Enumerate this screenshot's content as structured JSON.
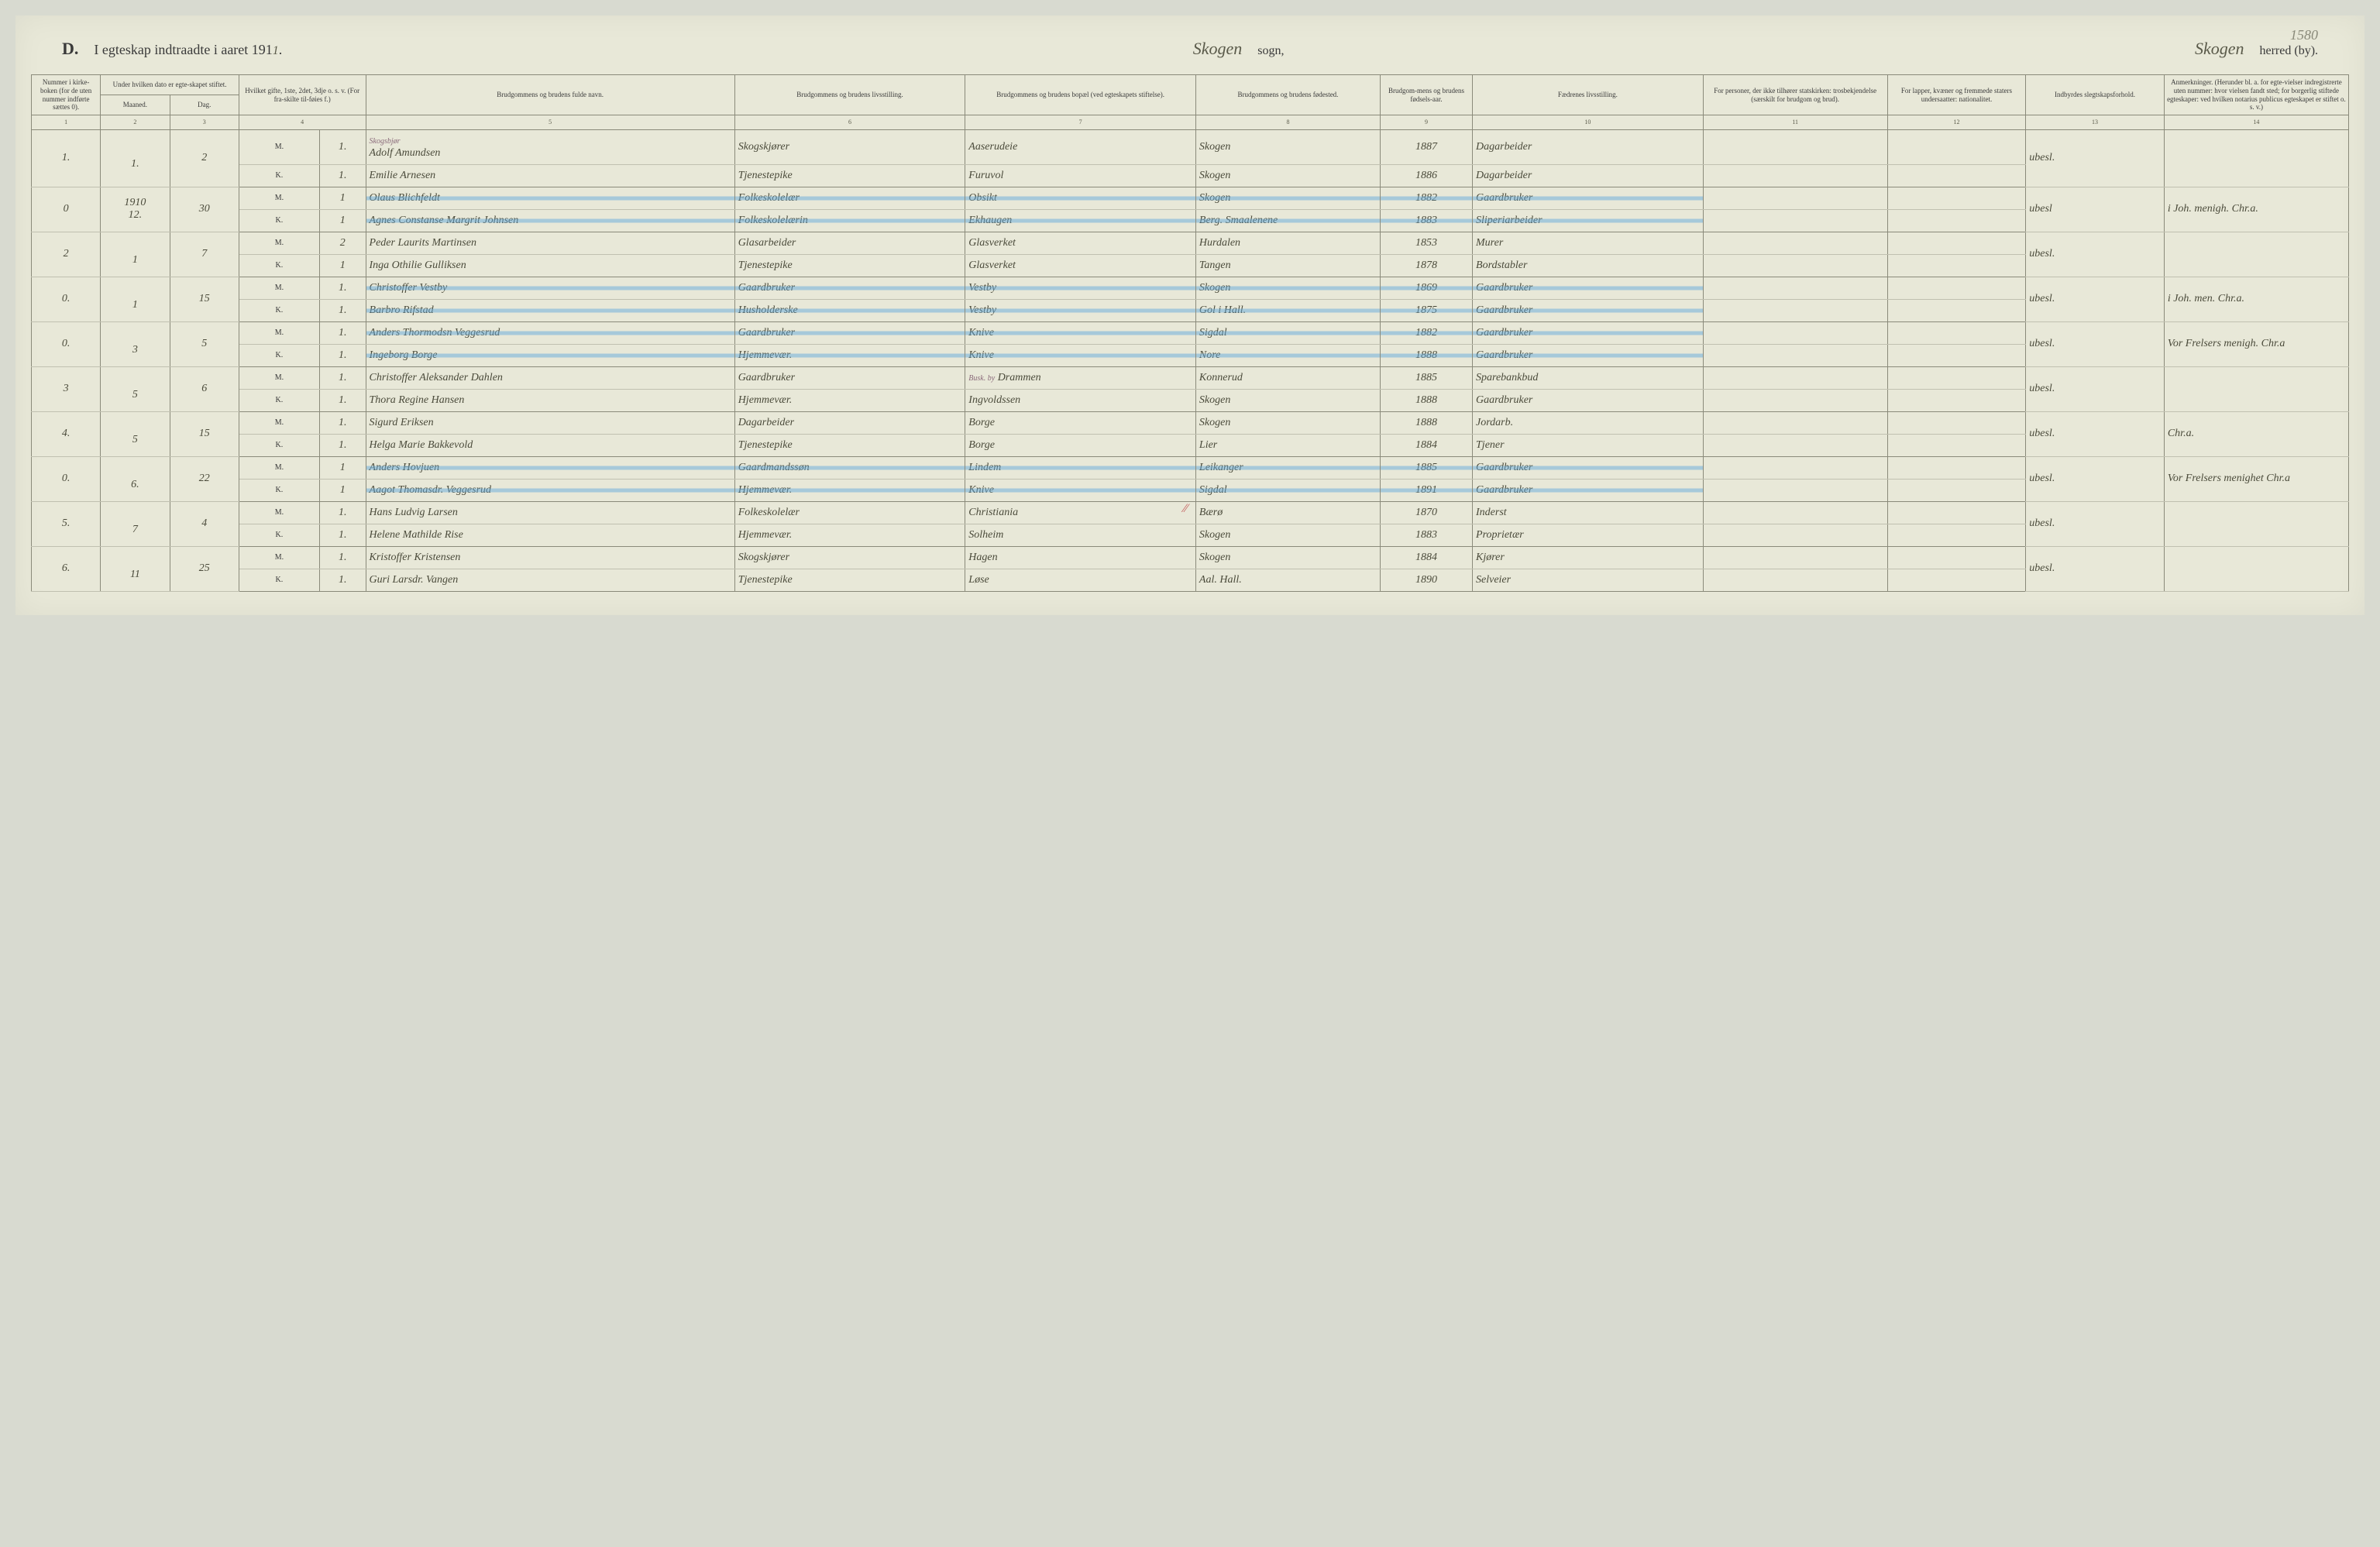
{
  "page_number": "1580",
  "header": {
    "letter": "D.",
    "title_prefix": "I egteskap indtraadte i aaret 191",
    "year_suffix": "1",
    "sogn_name": "Skogen",
    "sogn_label": "sogn,",
    "herred_name": "Skogen",
    "herred_label": "herred (by)."
  },
  "columns": {
    "c1": "Nummer i kirke-boken (for de uten nummer indførte sættes 0).",
    "c2a": "Under hvilken dato er egte-skapet stiftet.",
    "c2_maaned": "Maaned.",
    "c2_dag": "Dag.",
    "c3": "Hvilket gifte, 1ste, 2det, 3dje o. s. v. (For fra-skilte til-føies f.)",
    "c4": "Brudgommens og brudens fulde navn.",
    "c5": "Brudgommens og brudens livsstilling.",
    "c6": "Brudgommens og brudens bopæl (ved egteskapets stiftelse).",
    "c7": "Brudgommens og brudens fødested.",
    "c8": "Brudgom-mens og brudens fødsels-aar.",
    "c9": "Fædrenes livsstilling.",
    "c10": "For personer, der ikke tilhører statskirken: trosbekjendelse (særskilt for brudgom og brud).",
    "c11": "For lapper, kvæner og fremmede staters undersaatter: nationalitet.",
    "c12": "Indbyrdes slegtskapsforhold.",
    "c13": "Anmerkninger. (Herunder bl. a. for egte-vielser indregistrerte uten nummer: hvor vielsen fandt sted; for borgerlig stiftede egteskaper: ved hvilken notarius publicus egteskapet er stiftet o. s. v.)"
  },
  "col_numbers": [
    "1",
    "2",
    "3",
    "4",
    "5",
    "6",
    "7",
    "8",
    "9",
    "10",
    "11",
    "12",
    "13",
    "14"
  ],
  "mk": {
    "M": "M.",
    "K": "K."
  },
  "small_note": "Skogsbjør",
  "busk_note": "Busk. by",
  "rows": [
    {
      "num": "1.",
      "mn": "1.",
      "dag": "2",
      "blue": false,
      "m": {
        "g": "1.",
        "name": "Adolf Amundsen",
        "liv": "Skogskjører",
        "bopal": "Aaserudeie",
        "fod": "Skogen",
        "aar": "1887",
        "fadre": "Dagarbeider"
      },
      "k": {
        "g": "1.",
        "name": "Emilie Arnesen",
        "liv": "Tjenestepike",
        "bopal": "Furuvol",
        "fod": "Skogen",
        "aar": "1886",
        "fadre": "Dagarbeider"
      },
      "c12": "ubesl.",
      "c13": ""
    },
    {
      "num": "0",
      "mn_pre": "1910",
      "mn": "12.",
      "dag": "30",
      "blue": true,
      "m": {
        "g": "1",
        "name": "Olaus Blichfeldt",
        "liv": "Folkeskolelær",
        "bopal": "Obsikt",
        "fod": "Skogen",
        "aar": "1882",
        "fadre": "Gaardbruker"
      },
      "k": {
        "g": "1",
        "name": "Agnes Constanse Margrit Johnsen",
        "liv": "Folkeskolelærin",
        "bopal": "Ekhaugen",
        "fod": "Berg. Smaalenene",
        "aar": "1883",
        "fadre": "Sliperiarbeider"
      },
      "c12": "ubesl",
      "c13": "i Joh. menigh. Chr.a."
    },
    {
      "num": "2",
      "mn": "1",
      "dag": "7",
      "blue": false,
      "m": {
        "g": "2",
        "name": "Peder Laurits Martinsen",
        "liv": "Glasarbeider",
        "bopal": "Glasverket",
        "fod": "Hurdalen",
        "aar": "1853",
        "fadre": "Murer"
      },
      "k": {
        "g": "1",
        "name": "Inga Othilie Gulliksen",
        "liv": "Tjenestepike",
        "bopal": "Glasverket",
        "fod": "Tangen",
        "aar": "1878",
        "fadre": "Bordstabler"
      },
      "c12": "ubesl.",
      "c13": ""
    },
    {
      "num": "0.",
      "mn": "1",
      "dag": "15",
      "blue": true,
      "m": {
        "g": "1.",
        "name": "Christoffer Vestby",
        "liv": "Gaardbruker",
        "bopal": "Vestby",
        "fod": "Skogen",
        "aar": "1869",
        "fadre": "Gaardbruker"
      },
      "k": {
        "g": "1.",
        "name": "Barbro Rifstad",
        "liv": "Husholderske",
        "bopal": "Vestby",
        "fod": "Gol i Hall.",
        "aar": "1875",
        "fadre": "Gaardbruker"
      },
      "c12": "ubesl.",
      "c13": "i Joh. men. Chr.a."
    },
    {
      "num": "0.",
      "mn": "3",
      "dag": "5",
      "blue": true,
      "m": {
        "g": "1.",
        "name": "Anders Thormodsn Veggesrud",
        "liv": "Gaardbruker",
        "bopal": "Knive",
        "fod": "Sigdal",
        "aar": "1882",
        "fadre": "Gaardbruker"
      },
      "k": {
        "g": "1.",
        "name": "Ingeborg Borge",
        "liv": "Hjemmevær.",
        "bopal": "Knive",
        "fod": "Nore",
        "aar": "1888",
        "fadre": "Gaardbruker"
      },
      "c12": "ubesl.",
      "c13": "Vor Frelsers menigh. Chr.a"
    },
    {
      "num": "3",
      "mn": "5",
      "dag": "6",
      "blue": false,
      "m": {
        "g": "1.",
        "name": "Christoffer Aleksander Dahlen",
        "liv": "Gaardbruker",
        "bopal": "Drammen",
        "fod": "Konnerud",
        "aar": "1885",
        "fadre": "Sparebankbud"
      },
      "k": {
        "g": "1.",
        "name": "Thora Regine Hansen",
        "liv": "Hjemmevær.",
        "bopal": "Ingvoldssen",
        "fod": "Skogen",
        "aar": "1888",
        "fadre": "Gaardbruker"
      },
      "c12": "ubesl.",
      "c13": "",
      "busk": true
    },
    {
      "num": "4.",
      "mn": "5",
      "dag": "15",
      "blue": false,
      "m": {
        "g": "1.",
        "name": "Sigurd Eriksen",
        "liv": "Dagarbeider",
        "bopal": "Borge",
        "fod": "Skogen",
        "aar": "1888",
        "fadre": "Jordarb."
      },
      "k": {
        "g": "1.",
        "name": "Helga Marie Bakkevold",
        "liv": "Tjenestepike",
        "bopal": "Borge",
        "fod": "Lier",
        "aar": "1884",
        "fadre": "Tjener"
      },
      "c12": "ubesl.",
      "c13": "Chr.a."
    },
    {
      "num": "0.",
      "mn": "6.",
      "dag": "22",
      "blue": true,
      "m": {
        "g": "1",
        "name": "Anders Hovjuen",
        "liv": "Gaardmandssøn",
        "bopal": "Lindem",
        "fod": "Leikanger",
        "aar": "1885",
        "fadre": "Gaardbruker"
      },
      "k": {
        "g": "1",
        "name": "Aagot Thomasdr. Veggesrud",
        "liv": "Hjemmevær.",
        "bopal": "Knive",
        "fod": "Sigdal",
        "aar": "1891",
        "fadre": "Gaardbruker"
      },
      "c12": "ubesl.",
      "c13": "Vor Frelsers menighet Chr.a"
    },
    {
      "num": "5.",
      "mn": "7",
      "dag": "4",
      "blue": false,
      "m": {
        "g": "1.",
        "name": "Hans Ludvig Larsen",
        "liv": "Folkeskolelær",
        "bopal": "Christiania",
        "fod": "Bærø",
        "aar": "1870",
        "fadre": "Inderst"
      },
      "k": {
        "g": "1.",
        "name": "Helene Mathilde Rise",
        "liv": "Hjemmevær.",
        "bopal": "Solheim",
        "fod": "Skogen",
        "aar": "1883",
        "fadre": "Proprietær"
      },
      "c12": "ubesl.",
      "c13": "",
      "red": true
    },
    {
      "num": "6.",
      "mn": "11",
      "dag": "25",
      "blue": false,
      "m": {
        "g": "1.",
        "name": "Kristoffer Kristensen",
        "liv": "Skogskjører",
        "bopal": "Hagen",
        "fod": "Skogen",
        "aar": "1884",
        "fadre": "Kjører"
      },
      "k": {
        "g": "1.",
        "name": "Guri Larsdr. Vangen",
        "liv": "Tjenestepike",
        "bopal": "Løse",
        "fod": "Aal. Hall.",
        "aar": "1890",
        "fadre": "Selveier"
      },
      "c12": "ubesl.",
      "c13": ""
    }
  ],
  "widths": {
    "c1": "3%",
    "c2a": "3%",
    "c2b": "3%",
    "c3": "3.5%",
    "c3b": "2%",
    "c4": "16%",
    "c5": "10%",
    "c6": "10%",
    "c7": "8%",
    "c8": "4%",
    "c9": "10%",
    "c10": "8%",
    "c11": "6%",
    "c12": "6%",
    "c13": "8%"
  }
}
